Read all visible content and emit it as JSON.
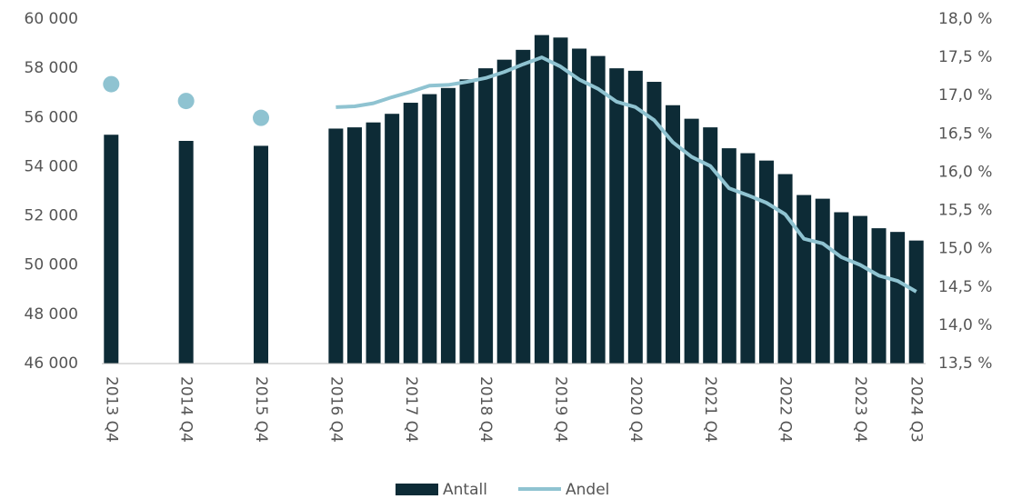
{
  "chart_data": {
    "type": "bar",
    "categories": [
      "2013 Q4",
      null,
      null,
      null,
      "2014 Q4",
      null,
      null,
      null,
      "2015 Q4",
      null,
      null,
      null,
      "2016 Q4",
      null,
      null,
      null,
      "2017 Q4",
      null,
      null,
      null,
      "2018 Q4",
      null,
      null,
      null,
      "2019 Q4",
      null,
      null,
      null,
      "2020 Q4",
      null,
      null,
      null,
      "2021 Q4",
      null,
      null,
      null,
      "2022 Q4",
      null,
      null,
      null,
      "2023 Q4",
      null,
      null,
      "2024 Q3"
    ],
    "series": [
      {
        "name": "Antall",
        "color": "#0d2b36",
        "values": [
          55300,
          null,
          null,
          null,
          55050,
          null,
          null,
          null,
          54850,
          null,
          null,
          null,
          55550,
          55600,
          55800,
          56150,
          56600,
          56950,
          57200,
          57550,
          58000,
          58350,
          58750,
          59350,
          59250,
          58800,
          58500,
          58000,
          57900,
          57450,
          56500,
          55950,
          55600,
          54750,
          54550,
          54250,
          53700,
          52850,
          52700,
          52150,
          52000,
          51500,
          51350,
          51000
        ]
      },
      {
        "name": "Andel",
        "color": "#8fc3d1",
        "axis": "y2",
        "type": "line",
        "values": [
          17.15,
          null,
          null,
          null,
          16.93,
          null,
          null,
          null,
          16.71,
          null,
          null,
          null,
          16.85,
          16.86,
          16.9,
          16.98,
          17.05,
          17.13,
          17.14,
          17.18,
          17.23,
          17.31,
          17.41,
          17.5,
          17.38,
          17.21,
          17.09,
          16.92,
          16.85,
          16.68,
          16.39,
          16.2,
          16.08,
          15.79,
          15.7,
          15.6,
          15.45,
          15.13,
          15.07,
          14.89,
          14.79,
          14.65,
          14.58,
          14.44
        ]
      }
    ],
    "ylim": [
      46000,
      60000
    ],
    "yticks": [
      {
        "value": 46000,
        "label": "46 000"
      },
      {
        "value": 48000,
        "label": "48 000"
      },
      {
        "value": 50000,
        "label": "50 000"
      },
      {
        "value": 52000,
        "label": "52 000"
      },
      {
        "value": 54000,
        "label": "54 000"
      },
      {
        "value": 56000,
        "label": "56 000"
      },
      {
        "value": 58000,
        "label": "58 000"
      },
      {
        "value": 60000,
        "label": "60 000"
      }
    ],
    "y2lim": [
      13.5,
      18.0
    ],
    "y2ticks": [
      {
        "value": 13.5,
        "label": "13,5 %"
      },
      {
        "value": 14.0,
        "label": "14,0 %"
      },
      {
        "value": 14.5,
        "label": "14,5 %"
      },
      {
        "value": 15.0,
        "label": "15,0 %"
      },
      {
        "value": 15.5,
        "label": "15,5 %"
      },
      {
        "value": 16.0,
        "label": "16,0 %"
      },
      {
        "value": 16.5,
        "label": "16,5 %"
      },
      {
        "value": 17.0,
        "label": "17,0 %"
      },
      {
        "value": 17.5,
        "label": "17,5 %"
      },
      {
        "value": 18.0,
        "label": "18,0 %"
      }
    ],
    "legend": "bottom"
  }
}
